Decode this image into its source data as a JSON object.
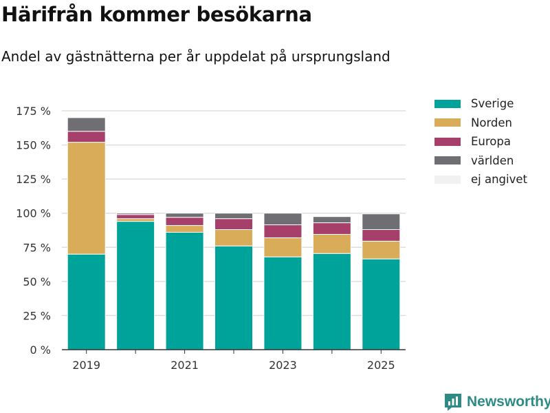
{
  "chart_data": {
    "type": "bar",
    "stacked": true,
    "title": "Härifrån kommer besökarna",
    "subtitle": "Andel av gästnätterna per år uppdelat på ursprungsland",
    "categories": [
      "2019",
      "2020",
      "2021",
      "2022",
      "2023",
      "2024",
      "2025"
    ],
    "x_tick_labels": [
      "2019",
      "",
      "2021",
      "",
      "2023",
      "",
      "2025"
    ],
    "ylim": [
      0,
      175
    ],
    "y_ticks": [
      0,
      25,
      50,
      75,
      100,
      125,
      150,
      175
    ],
    "y_tick_labels": [
      "0 %",
      "25 %",
      "50 %",
      "75 %",
      "100 %",
      "125 %",
      "150 %",
      "175 %"
    ],
    "grid": true,
    "legend_position": "right",
    "series": [
      {
        "name": "Sverige",
        "color": "#00a39a",
        "values": [
          70,
          94,
          86,
          76,
          68,
          70.5,
          66.5
        ]
      },
      {
        "name": "Norden",
        "color": "#d9ac5a",
        "values": [
          82,
          2,
          5,
          12,
          14,
          14,
          13
        ]
      },
      {
        "name": "Europa",
        "color": "#a63f6a",
        "values": [
          8,
          3,
          6,
          8,
          9.5,
          8.5,
          8.5
        ]
      },
      {
        "name": "världen",
        "color": "#6e6e73",
        "values": [
          10,
          1,
          3,
          4,
          8.5,
          4.5,
          11.5
        ]
      },
      {
        "name": "ej angivet",
        "color": "#f1f1f1",
        "values": [
          0,
          0,
          0,
          0,
          0,
          0,
          0
        ]
      }
    ]
  },
  "brand": {
    "name": "Newsworthy",
    "color": "#2c8c85"
  }
}
